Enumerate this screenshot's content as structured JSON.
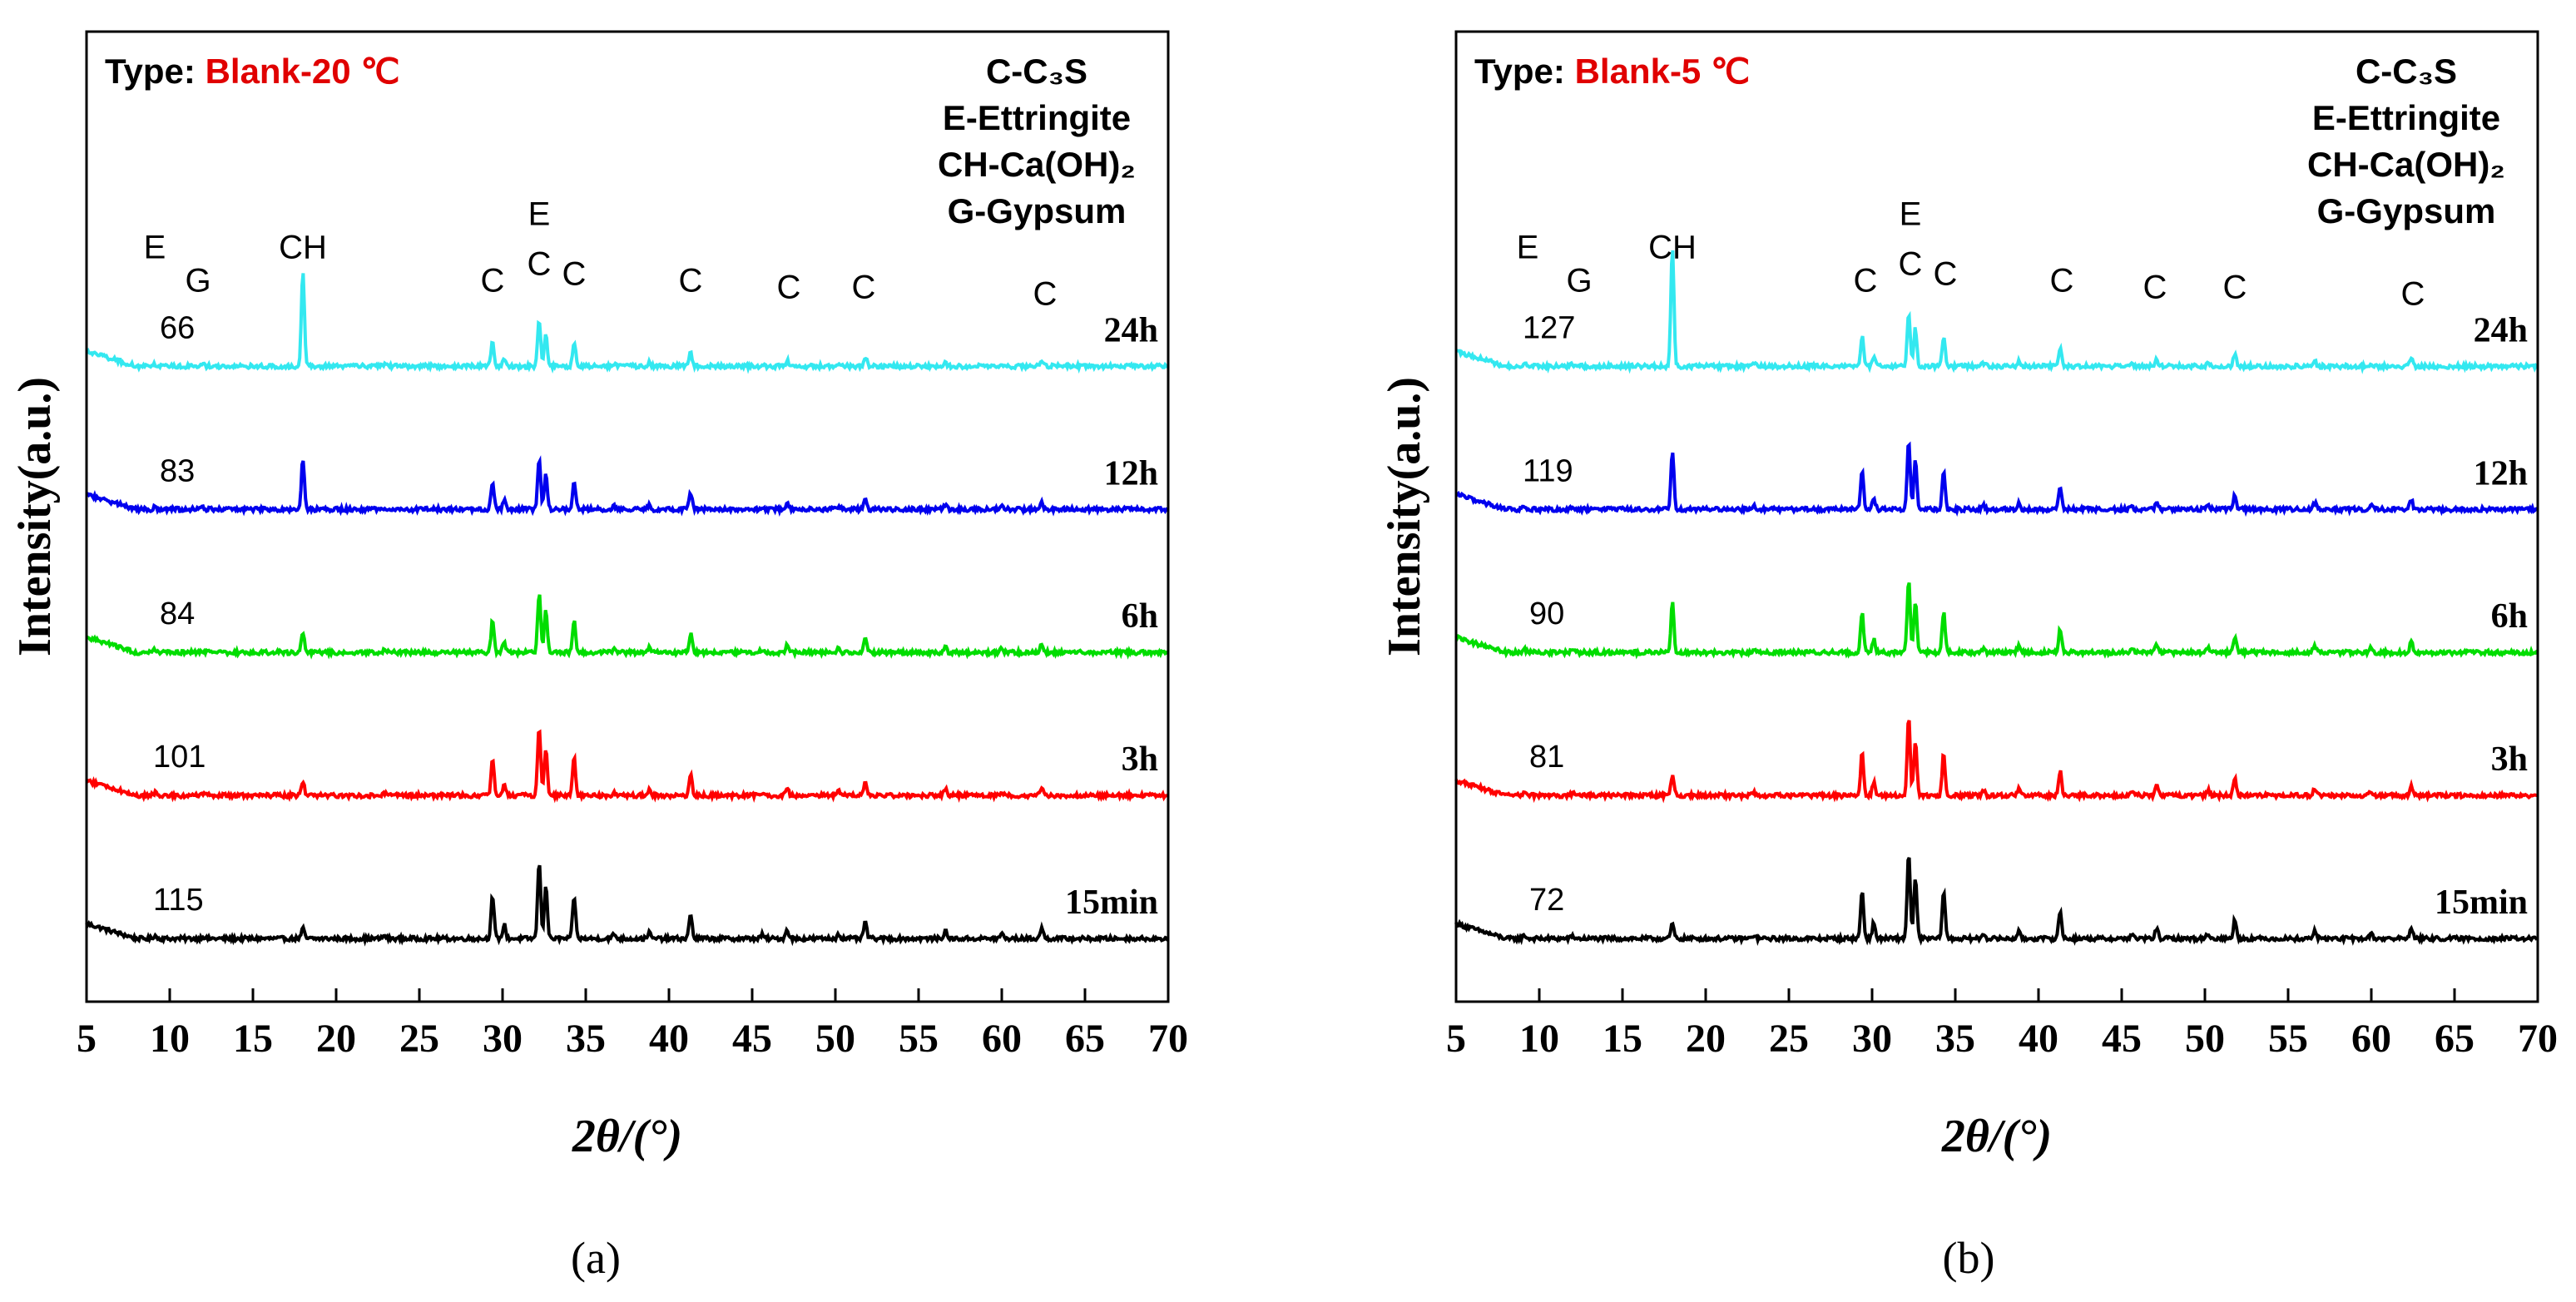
{
  "figure": {
    "sublabels": [
      "(a)",
      "(b)"
    ]
  },
  "chart_data": [
    {
      "type": "line",
      "panel": "a",
      "type_label": "Type:",
      "type_value": "Blank-20 ℃",
      "xlabel": "2θ/(°)",
      "ylabel": "Intensity(a.u.)",
      "xlim": [
        5,
        70
      ],
      "xticks": [
        "5",
        "10",
        "15",
        "20",
        "25",
        "30",
        "35",
        "40",
        "45",
        "50",
        "55",
        "60",
        "65",
        "70"
      ],
      "legend": [
        "C-C₃S",
        "E-Ettringite",
        "CH-Ca(OH)₂",
        "G-Gypsum"
      ],
      "series": [
        {
          "name": "15min",
          "color": "#000000",
          "intensity": "115",
          "strength": 0.85,
          "offset": 0
        },
        {
          "name": "3h",
          "color": "#ff0000",
          "intensity": "101",
          "strength": 0.75,
          "offset": 1
        },
        {
          "name": "6h",
          "color": "#00dd00",
          "intensity": "84",
          "strength": 0.65,
          "offset": 2
        },
        {
          "name": "12h",
          "color": "#0000ee",
          "intensity": "83",
          "strength": 0.55,
          "offset": 3
        },
        {
          "name": "24h",
          "color": "#33e8f0",
          "intensity": "66",
          "strength": 0.5,
          "offset": 4
        }
      ],
      "ch_scale": [
        0.1,
        0.15,
        0.2,
        0.5,
        0.95
      ],
      "peak_markers": [
        {
          "label": "E",
          "x": 9.1,
          "row": 0
        },
        {
          "label": "G",
          "x": 11.7,
          "row": 1
        },
        {
          "label": "CH",
          "x": 18.0,
          "row": 0
        },
        {
          "label": "C",
          "x": 29.4,
          "row": 1
        },
        {
          "label": "E",
          "x": 32.2,
          "row": -1
        },
        {
          "label": "C",
          "x": 32.2,
          "row": 0.5
        },
        {
          "label": "C",
          "x": 34.3,
          "row": 0.8
        },
        {
          "label": "C",
          "x": 41.3,
          "row": 1
        },
        {
          "label": "C",
          "x": 47.2,
          "row": 1.2
        },
        {
          "label": "C",
          "x": 51.7,
          "row": 1.2
        },
        {
          "label": "C",
          "x": 62.6,
          "row": 1.4
        }
      ]
    },
    {
      "type": "line",
      "panel": "b",
      "type_label": "Type:",
      "type_value": "Blank-5 ℃",
      "xlabel": "2θ/(°)",
      "ylabel": "Intensity(a.u.)",
      "xlim": [
        5,
        70
      ],
      "xticks": [
        "5",
        "10",
        "15",
        "20",
        "25",
        "30",
        "35",
        "40",
        "45",
        "50",
        "55",
        "60",
        "65",
        "70"
      ],
      "legend": [
        "C-C₃S",
        "E-Ettringite",
        "CH-Ca(OH)₂",
        "G-Gypsum"
      ],
      "series": [
        {
          "name": "15min",
          "color": "#000000",
          "intensity": "72",
          "strength": 0.95,
          "offset": 0
        },
        {
          "name": "3h",
          "color": "#ff0000",
          "intensity": "81",
          "strength": 0.85,
          "offset": 1
        },
        {
          "name": "6h",
          "color": "#00dd00",
          "intensity": "90",
          "strength": 0.8,
          "offset": 2
        },
        {
          "name": "12h",
          "color": "#0000ee",
          "intensity": "119",
          "strength": 0.75,
          "offset": 3
        },
        {
          "name": "24h",
          "color": "#33e8f0",
          "intensity": "127",
          "strength": 0.6,
          "offset": 4
        }
      ],
      "ch_scale": [
        0.15,
        0.2,
        0.5,
        0.6,
        1.2
      ],
      "peak_markers": [
        {
          "label": "E",
          "x": 9.3,
          "row": 0
        },
        {
          "label": "G",
          "x": 12.4,
          "row": 1
        },
        {
          "label": "CH",
          "x": 18.0,
          "row": 0
        },
        {
          "label": "C",
          "x": 29.6,
          "row": 1
        },
        {
          "label": "E",
          "x": 32.3,
          "row": -1
        },
        {
          "label": "C",
          "x": 32.3,
          "row": 0.5
        },
        {
          "label": "C",
          "x": 34.4,
          "row": 0.8
        },
        {
          "label": "C",
          "x": 41.4,
          "row": 1
        },
        {
          "label": "C",
          "x": 47.0,
          "row": 1.2
        },
        {
          "label": "C",
          "x": 51.8,
          "row": 1.2
        },
        {
          "label": "C",
          "x": 62.5,
          "row": 1.4
        }
      ]
    }
  ]
}
